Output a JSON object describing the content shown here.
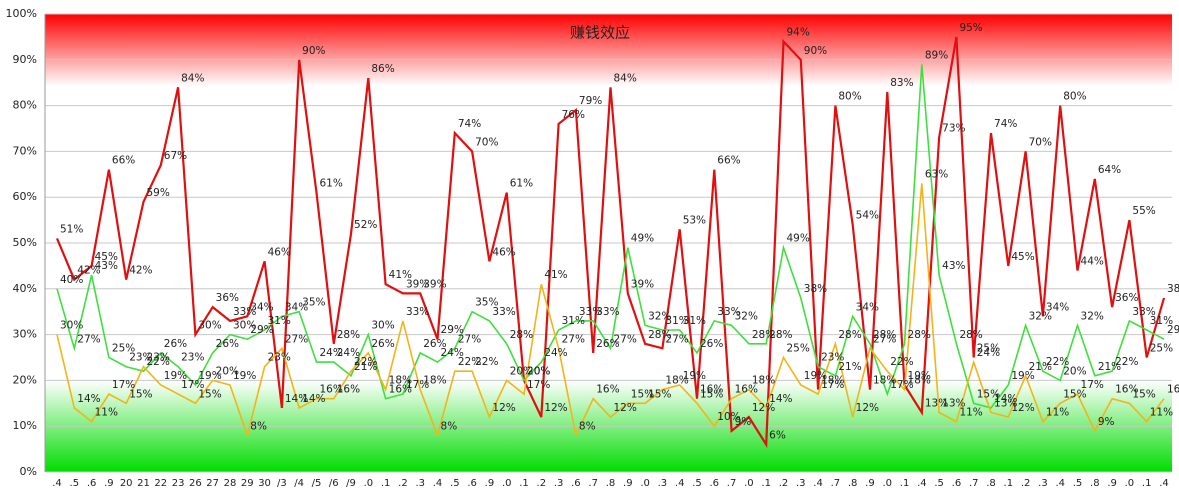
{
  "chart_data": {
    "type": "line",
    "title": "赚钱效应",
    "categories": [
      ".4",
      ".5",
      ".6",
      ".9",
      "20",
      "21",
      "22",
      "23",
      "26",
      "27",
      "28",
      "29",
      "30",
      "/3",
      "/4",
      "/5",
      "/6",
      "/9",
      ".0",
      ".1",
      ".2",
      ".3",
      ".4",
      ".5",
      ".6",
      ".9",
      ".0",
      ".1",
      ".2",
      ".3",
      ".6",
      ".7",
      ".8",
      ".9",
      ".0",
      ".3",
      ".4",
      ".5",
      ".6",
      ".7",
      ".0",
      ".1",
      ".2",
      ".3",
      ".4",
      ".7",
      ".8",
      ".9",
      ".0",
      ".1",
      ".4",
      ".5",
      ".6",
      ".7",
      ".8",
      ".1",
      ".2",
      ".3",
      ".4",
      ".5",
      ".8",
      ".9",
      ".0",
      ".1",
      ".4"
    ],
    "series": [
      {
        "color": "#e01010",
        "values": [
          51,
          42,
          45,
          66,
          42,
          59,
          67,
          84,
          30,
          36,
          33,
          34,
          46,
          14,
          90,
          61,
          28,
          52,
          86,
          41,
          39,
          39,
          29,
          74,
          70,
          46,
          61,
          20,
          12,
          76,
          79,
          26,
          84,
          39,
          28,
          27,
          53,
          16,
          66,
          9,
          12,
          6,
          94,
          90,
          18,
          80,
          54,
          18,
          83,
          19,
          13,
          73,
          95,
          25,
          74,
          45,
          70,
          34,
          80,
          44,
          64,
          36,
          55,
          25,
          38
        ],
        "value_labels": [
          "51%",
          "42%",
          "45%",
          "66%",
          "42%",
          "59%",
          "67%",
          "84%",
          "30%",
          "36%",
          "33%",
          "34%",
          "46%",
          "14%",
          "90%",
          "61%",
          "28%",
          "52%",
          "86%",
          "41%",
          "39%",
          "39%",
          "29%",
          "74%",
          "70%",
          "46%",
          "61%",
          "20%",
          "12%",
          "76%",
          "79%",
          "26%",
          "84%",
          "39%",
          "28%",
          "27%",
          "53%",
          "16%",
          "66%",
          "9%",
          "12%",
          "6%",
          "94%",
          "90%",
          "18%",
          "80%",
          "54%",
          "18%",
          "83%",
          "19%",
          "13%",
          "73%",
          "95%",
          "25%",
          "74%",
          "45%",
          "70%",
          "34%",
          "80%",
          "44%",
          "64%",
          "36%",
          "55%",
          "25%",
          "38%"
        ]
      },
      {
        "color": "#3ee03e",
        "values": [
          40,
          27,
          43,
          25,
          23,
          22,
          26,
          23,
          19,
          26,
          30,
          29,
          31,
          34,
          35,
          24,
          24,
          21,
          30,
          16,
          17,
          26,
          24,
          27,
          35,
          33,
          28,
          20,
          24,
          31,
          33,
          33,
          27,
          49,
          32,
          31,
          31,
          26,
          33,
          32,
          28,
          28,
          49,
          38,
          23,
          21,
          34,
          28,
          17,
          28,
          89,
          43,
          28,
          15,
          14,
          19,
          32,
          22,
          20,
          32,
          21,
          22,
          33,
          31,
          29
        ],
        "value_labels": [
          "40%",
          "27%",
          "43%",
          "25%",
          "23%",
          "22%",
          "26%",
          "23%",
          "19%",
          "26%",
          "30%",
          "29%",
          "31%",
          "34%",
          "35%",
          "24%",
          "24%",
          "21%",
          "30%",
          "16%",
          "17%",
          "26%",
          "24%",
          "27%",
          "35%",
          "33%",
          "28%",
          "20%",
          "24%",
          "31%",
          "33%",
          "33%",
          "27%",
          "49%",
          "32%",
          "31%",
          "31%",
          "26%",
          "33%",
          "32%",
          "28%",
          "28%",
          "49%",
          "38%",
          "23%",
          "21%",
          "34%",
          "28%",
          "17%",
          "28%",
          "89%",
          "43%",
          "28%",
          "15%",
          "14%",
          "19%",
          "32%",
          "22%",
          "20%",
          "32%",
          "21%",
          "22%",
          "33%",
          "31%",
          "29%"
        ]
      },
      {
        "color": "#f2b418",
        "values": [
          30,
          14,
          11,
          17,
          15,
          23,
          19,
          17,
          15,
          20,
          19,
          8,
          23,
          27,
          14,
          16,
          16,
          22,
          26,
          18,
          33,
          18,
          8,
          22,
          22,
          12,
          20,
          17,
          41,
          27,
          8,
          16,
          12,
          15,
          15,
          18,
          19,
          15,
          10,
          16,
          18,
          14,
          25,
          19,
          17,
          28,
          12,
          27,
          22,
          18,
          63,
          13,
          11,
          24,
          13,
          12,
          21,
          11,
          15,
          17,
          9,
          16,
          15,
          11,
          16
        ],
        "value_labels": [
          "30%",
          "14%",
          "11%",
          "17%",
          "15%",
          "23%",
          "19%",
          "17%",
          "15%",
          "20%",
          "19%",
          "8%",
          "23%",
          "27%",
          "14%",
          "16%",
          "16%",
          "22%",
          "26%",
          "18%",
          "33%",
          "18%",
          "8%",
          "22%",
          "22%",
          "12%",
          "20%",
          "17%",
          "41%",
          "27%",
          "8%",
          "16%",
          "12%",
          "15%",
          "15%",
          "18%",
          "19%",
          "15%",
          "10%",
          "16%",
          "18%",
          "14%",
          "25%",
          "19%",
          "17%",
          "28%",
          "12%",
          "27%",
          "22%",
          "18%",
          "63%",
          "13%",
          "11%",
          "24%",
          "13%",
          "12%",
          "21%",
          "11%",
          "15%",
          "17%",
          "9%",
          "16%",
          "15%",
          "11%",
          "16%"
        ]
      }
    ],
    "ylim": [
      0,
      100
    ],
    "yticks": [
      {
        "value": 0,
        "label": "0%"
      },
      {
        "value": 10,
        "label": "10%"
      },
      {
        "value": 20,
        "label": "20%"
      },
      {
        "value": 30,
        "label": "30%"
      },
      {
        "value": 40,
        "label": "40%"
      },
      {
        "value": 50,
        "label": "50%"
      },
      {
        "value": 60,
        "label": "60%"
      },
      {
        "value": 70,
        "label": "70%"
      },
      {
        "value": 80,
        "label": "80%"
      },
      {
        "value": 90,
        "label": "90%"
      },
      {
        "value": 100,
        "label": "100%"
      }
    ],
    "grid": true
  }
}
